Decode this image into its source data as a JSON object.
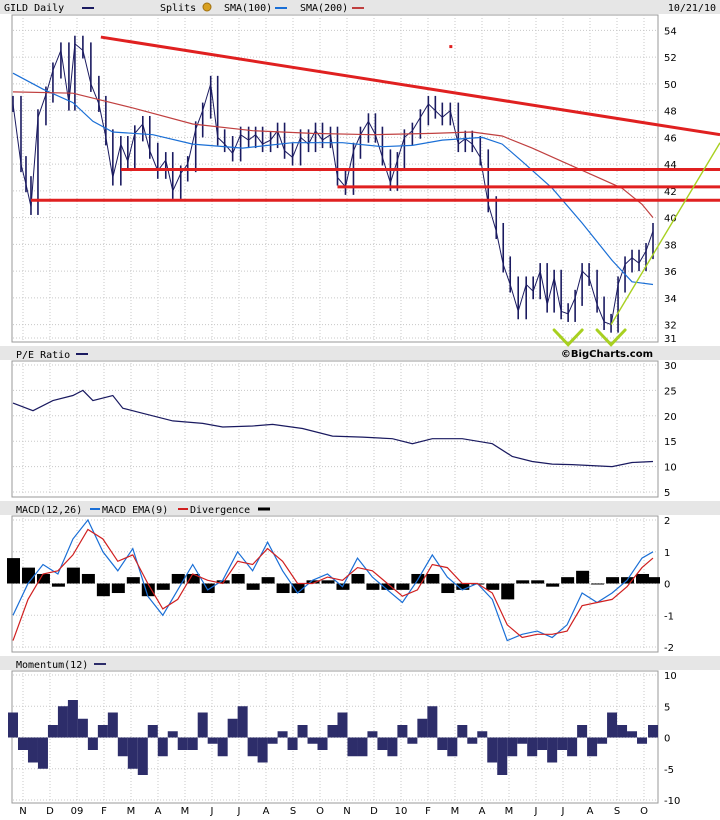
{
  "header": {
    "ticker": "GILD Daily",
    "splits_label": "Splits",
    "sma100_label": "SMA(100)",
    "sma200_label": "SMA(200)",
    "date": "10/21/10"
  },
  "watermark": "©BigCharts.com",
  "colors": {
    "price": "#1a1a60",
    "sma100": "#1a6fd6",
    "sma200": "#c04040",
    "trend": "#e02020",
    "green": "#a8d020",
    "momentum": "#2d2d6a",
    "macd_hist": "#000000",
    "macd": "#1a6fd6",
    "macd_ema": "#d02020"
  },
  "x_axis": {
    "labels": [
      "N",
      "D",
      "09",
      "F",
      "M",
      "A",
      "M",
      "J",
      "J",
      "A",
      "S",
      "O",
      "N",
      "D",
      "10",
      "F",
      "M",
      "A",
      "M",
      "J",
      "J",
      "A",
      "S",
      "O"
    ]
  },
  "chart_data": [
    {
      "type": "line",
      "title": "GILD Daily",
      "y_ticks": [
        31,
        32,
        34,
        36,
        38,
        40,
        42,
        44,
        46,
        48,
        50,
        52,
        54
      ],
      "ylim": [
        31,
        55
      ],
      "legend": "top",
      "series": [
        {
          "name": "GILD Daily",
          "style": "ohlc",
          "x": [
            0,
            8,
            13,
            18,
            25,
            33,
            40,
            48,
            56,
            62,
            70,
            78,
            86,
            93,
            100,
            108,
            115,
            122,
            130,
            137,
            145,
            153,
            160,
            168,
            175,
            183,
            190,
            198,
            205,
            212,
            220,
            228,
            236,
            243,
            250,
            258,
            265,
            272,
            280,
            288,
            296,
            303,
            310,
            318,
            325,
            333,
            341,
            348,
            356,
            363,
            370,
            378,
            385,
            392,
            400,
            408,
            416,
            423,
            430,
            438,
            446,
            453,
            460,
            468,
            476,
            484,
            491,
            498,
            506,
            514,
            521,
            528,
            535,
            542,
            549,
            556,
            563,
            570,
            577,
            585,
            592,
            599,
            606,
            613,
            620,
            627,
            634,
            641
          ],
          "y": [
            48.5,
            44,
            42.5,
            40.8,
            47.5,
            49.2,
            51,
            52.5,
            48.6,
            53,
            52.5,
            50,
            48.5,
            46,
            43,
            45.5,
            44.2,
            46.3,
            47,
            45,
            43.5,
            44.3,
            42,
            43.3,
            44,
            46.6,
            48,
            50,
            46,
            45.5,
            44.8,
            46.2,
            45.8,
            46.2,
            45.5,
            45.8,
            46.5,
            45,
            44.5,
            46,
            45.5,
            46.5,
            45.8,
            46.2,
            43,
            42.3,
            45,
            46.2,
            47.2,
            46.2,
            44.5,
            42.6,
            44.3,
            46,
            46.5,
            47.5,
            48.5,
            48,
            47.5,
            48,
            45.5,
            45.9,
            45.5,
            44.5,
            41,
            39,
            36.5,
            35,
            33,
            35,
            34.5,
            36,
            33.5,
            35.5,
            33,
            32.8,
            34,
            36,
            35.5,
            33.5,
            32.2,
            32,
            35,
            36.5,
            37,
            36.6,
            37.5,
            39
          ]
        },
        {
          "name": "SMA(100)",
          "x": [
            0,
            30,
            60,
            80,
            100,
            140,
            180,
            230,
            280,
            330,
            370,
            400,
            430,
            470,
            490,
            510,
            540,
            570,
            600,
            620,
            641
          ],
          "y": [
            50.8,
            49.6,
            48.6,
            47.2,
            46.4,
            46.2,
            45.5,
            45.2,
            45.6,
            45.6,
            45.3,
            45.4,
            45.8,
            46,
            45.5,
            44.2,
            42.2,
            39.6,
            36.8,
            35.2,
            35
          ]
        },
        {
          "name": "SMA(200)",
          "x": [
            0,
            60,
            120,
            180,
            240,
            300,
            360,
            420,
            460,
            490,
            520,
            550,
            580,
            610,
            630,
            641
          ],
          "y": [
            49.4,
            49.3,
            48.2,
            47,
            46.5,
            46.3,
            46.2,
            46.3,
            46.4,
            46.1,
            45.2,
            44.2,
            43.2,
            42.2,
            41,
            40
          ]
        }
      ]
    },
    {
      "type": "line",
      "title": "P/E Ratio",
      "y_ticks": [
        5,
        10,
        15,
        20,
        25,
        30
      ],
      "ylim": [
        5,
        30
      ],
      "series": [
        {
          "name": "P/E Ratio",
          "x": [
            0,
            20,
            40,
            60,
            70,
            80,
            100,
            110,
            130,
            160,
            190,
            210,
            240,
            260,
            290,
            320,
            350,
            380,
            400,
            420,
            450,
            480,
            500,
            520,
            540,
            560,
            580,
            600,
            620,
            641
          ],
          "y": [
            22.5,
            21,
            23,
            24,
            25,
            23,
            24,
            21.5,
            20.5,
            19,
            18.5,
            17.8,
            18,
            18.3,
            17.5,
            16,
            15.8,
            15.5,
            14.5,
            15.5,
            15.5,
            14.5,
            12,
            11,
            10.5,
            10.4,
            10.2,
            10,
            10.8,
            11
          ]
        }
      ]
    },
    {
      "type": "line",
      "title": "MACD(12,26)",
      "y_ticks": [
        -2,
        -1,
        0,
        1,
        2
      ],
      "ylim": [
        -2,
        2
      ],
      "legend": "top",
      "series": [
        {
          "name": "MACD(12,26)",
          "x": [
            0,
            15,
            30,
            45,
            60,
            75,
            90,
            105,
            120,
            135,
            150,
            165,
            180,
            195,
            210,
            225,
            240,
            255,
            270,
            285,
            300,
            315,
            330,
            345,
            360,
            375,
            390,
            405,
            420,
            435,
            450,
            465,
            480,
            495,
            510,
            525,
            540,
            555,
            570,
            585,
            600,
            615,
            630,
            641
          ],
          "y": [
            -1,
            0,
            0.6,
            0.3,
            1.4,
            2,
            1,
            0.4,
            1.1,
            -0.4,
            -1,
            -0.2,
            0.6,
            -0.2,
            0.1,
            1,
            0.4,
            1.3,
            0.4,
            -0.3,
            0.1,
            0.3,
            -0.1,
            0.8,
            0.2,
            -0.2,
            -0.6,
            0.1,
            0.9,
            0.2,
            -0.2,
            0,
            -0.5,
            -1.8,
            -1.6,
            -1.5,
            -1.7,
            -1.3,
            -0.3,
            -0.6,
            -0.3,
            0.1,
            0.8,
            1
          ]
        },
        {
          "name": "MACD EMA(9)",
          "x": [
            0,
            15,
            30,
            45,
            60,
            75,
            90,
            105,
            120,
            135,
            150,
            165,
            180,
            195,
            210,
            225,
            240,
            255,
            270,
            285,
            300,
            315,
            330,
            345,
            360,
            375,
            390,
            405,
            420,
            435,
            450,
            465,
            480,
            495,
            510,
            525,
            540,
            555,
            570,
            585,
            600,
            615,
            630,
            641
          ],
          "y": [
            -1.8,
            -0.5,
            0.3,
            0.4,
            0.9,
            1.7,
            1.4,
            0.7,
            0.9,
            0,
            -0.8,
            -0.5,
            0.3,
            0.1,
            0,
            0.7,
            0.6,
            1.1,
            0.7,
            0,
            0,
            0.2,
            0.1,
            0.5,
            0.4,
            0,
            -0.4,
            -0.2,
            0.6,
            0.5,
            0,
            0,
            -0.3,
            -1.3,
            -1.7,
            -1.6,
            -1.6,
            -1.5,
            -0.7,
            -0.6,
            -0.5,
            -0.1,
            0.5,
            0.8
          ]
        },
        {
          "name": "Divergence",
          "style": "histogram",
          "x": [
            0,
            15,
            30,
            45,
            60,
            75,
            90,
            105,
            120,
            135,
            150,
            165,
            180,
            195,
            210,
            225,
            240,
            255,
            270,
            285,
            300,
            315,
            330,
            345,
            360,
            375,
            390,
            405,
            420,
            435,
            450,
            465,
            480,
            495,
            510,
            525,
            540,
            555,
            570,
            585,
            600,
            615,
            630,
            641
          ],
          "y": [
            0.8,
            0.5,
            0.3,
            -0.1,
            0.5,
            0.3,
            -0.4,
            -0.3,
            0.2,
            -0.4,
            -0.2,
            0.3,
            0.3,
            -0.3,
            0.1,
            0.3,
            -0.2,
            0.2,
            -0.3,
            -0.3,
            0.1,
            0.1,
            -0.2,
            0.3,
            -0.2,
            -0.2,
            -0.2,
            0.3,
            0.3,
            -0.3,
            -0.2,
            0,
            -0.2,
            -0.5,
            0.1,
            0.1,
            -0.1,
            0.2,
            0.4,
            0,
            0.2,
            0.2,
            0.3,
            0.2
          ]
        }
      ]
    },
    {
      "type": "bar",
      "title": "Momentum(12)",
      "y_ticks": [
        -10,
        -5,
        0,
        5,
        10
      ],
      "ylim": [
        -10,
        10
      ],
      "series": [
        {
          "name": "Momentum(12)",
          "x": [
            0,
            10,
            20,
            30,
            40,
            50,
            60,
            70,
            80,
            90,
            100,
            110,
            120,
            130,
            140,
            150,
            160,
            170,
            180,
            190,
            200,
            210,
            220,
            230,
            240,
            250,
            260,
            270,
            280,
            290,
            300,
            310,
            320,
            330,
            340,
            350,
            360,
            370,
            380,
            390,
            400,
            410,
            420,
            430,
            440,
            450,
            460,
            470,
            480,
            490,
            500,
            510,
            520,
            530,
            540,
            550,
            560,
            570,
            580,
            590,
            600,
            610,
            620,
            630,
            641
          ],
          "y": [
            4,
            -2,
            -4,
            -5,
            2,
            5,
            6,
            3,
            -2,
            2,
            4,
            -3,
            -5,
            -6,
            2,
            -3,
            1,
            -2,
            -2,
            4,
            -1,
            -3,
            3,
            5,
            -3,
            -4,
            -1,
            1,
            -2,
            2,
            -1,
            -2,
            2,
            4,
            -3,
            -3,
            1,
            -2,
            -3,
            2,
            -1,
            3,
            5,
            -2,
            -3,
            2,
            -1,
            1,
            -4,
            -6,
            -3,
            -1,
            -3,
            -2,
            -4,
            -2,
            -3,
            2,
            -3,
            -1,
            4,
            2,
            1,
            -1,
            2
          ]
        }
      ]
    }
  ]
}
